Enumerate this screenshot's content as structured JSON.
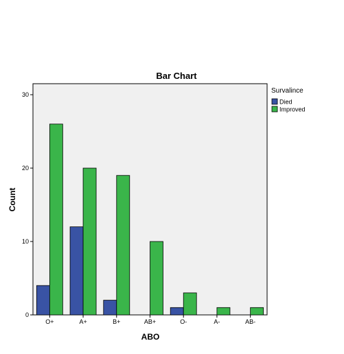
{
  "chart_data": {
    "type": "bar",
    "title": "Bar Chart",
    "xlabel": "ABO",
    "ylabel": "Count",
    "categories": [
      "O+",
      "A+",
      "B+",
      "AB+",
      "O-",
      "A-",
      "AB-"
    ],
    "series": [
      {
        "name": "Died",
        "values": [
          4,
          12,
          2,
          0,
          1,
          0,
          0
        ],
        "color": "#3953a4"
      },
      {
        "name": "Improved",
        "values": [
          26,
          20,
          19,
          10,
          3,
          1,
          1
        ],
        "color": "#3ab54a"
      }
    ],
    "ylim": [
      0,
      31.5
    ],
    "yticks": [
      0,
      10,
      20,
      30
    ],
    "legend": {
      "title": "Survalince",
      "position": "right"
    },
    "plot_background": "#f0f0f0",
    "grid": false
  }
}
